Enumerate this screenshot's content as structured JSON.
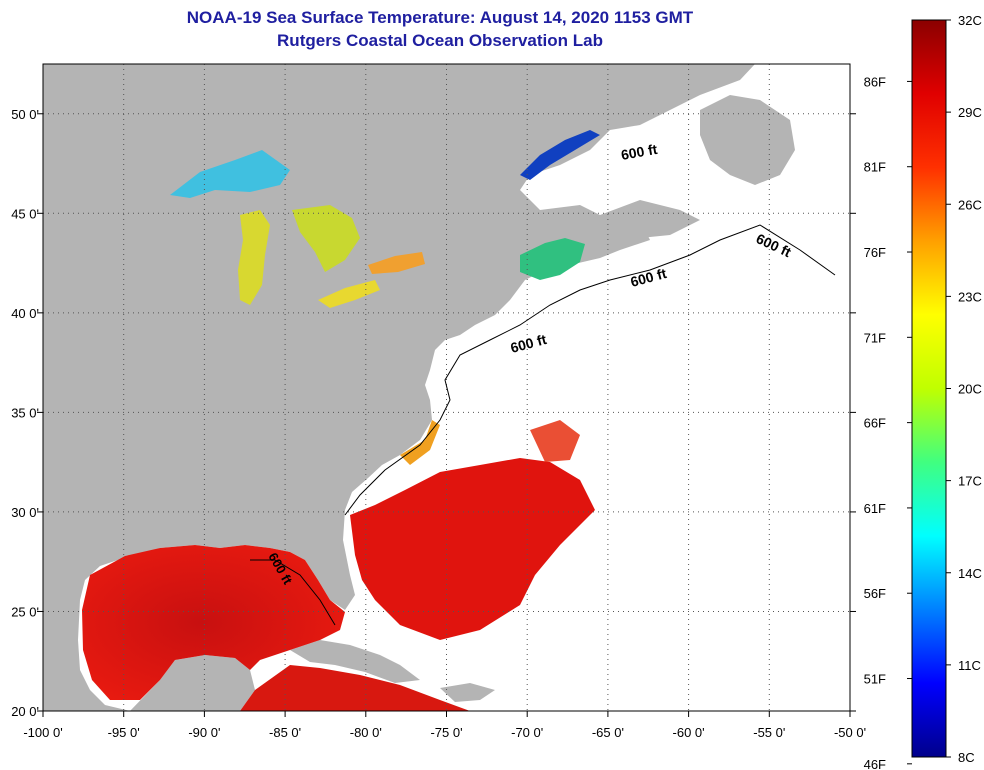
{
  "title_line1": "NOAA-19 Sea Surface Temperature:  August 14, 2020 1153 GMT",
  "title_line2": "Rutgers Coastal Ocean Observation Lab",
  "map": {
    "lon_labels": [
      "-100 0'",
      "-95 0'",
      "-90 0'",
      "-85 0'",
      "-80 0'",
      "-75 0'",
      "-70 0'",
      "-65 0'",
      "-60 0'",
      "-55 0'",
      "-50 0'"
    ],
    "lon_values": [
      -100,
      -95,
      -90,
      -85,
      -80,
      -75,
      -70,
      -65,
      -60,
      -55,
      -50
    ],
    "lat_labels": [
      "50 0'",
      "45 0'",
      "40 0'",
      "35 0'",
      "30 0'",
      "25 0'",
      "20 0'"
    ],
    "lat_values": [
      50,
      45,
      40,
      35,
      30,
      25,
      20
    ],
    "lon_range": [
      -100,
      -50
    ],
    "lat_range": [
      20,
      52.5
    ],
    "contour_label": "600 ft",
    "colors": {
      "land": "#b4b4b4",
      "ocean_no_data": "#ffffff",
      "warm_sst": "#e0140e",
      "lake_sst": "#f0d030"
    }
  },
  "colorbar": {
    "c_labels": [
      "32C",
      "29C",
      "26C",
      "23C",
      "20C",
      "17C",
      "14C",
      "11C",
      "8C"
    ],
    "f_labels": [
      "86F",
      "81F",
      "76F",
      "71F",
      "66F",
      "61F",
      "56F",
      "51F",
      "46F"
    ],
    "range_c": [
      8,
      32
    ],
    "stops": [
      "#00008b",
      "#0000ff",
      "#0080ff",
      "#00ffff",
      "#40ff80",
      "#c0ff00",
      "#ffff00",
      "#ffa000",
      "#ff3000",
      "#e00000",
      "#8b0000"
    ]
  }
}
